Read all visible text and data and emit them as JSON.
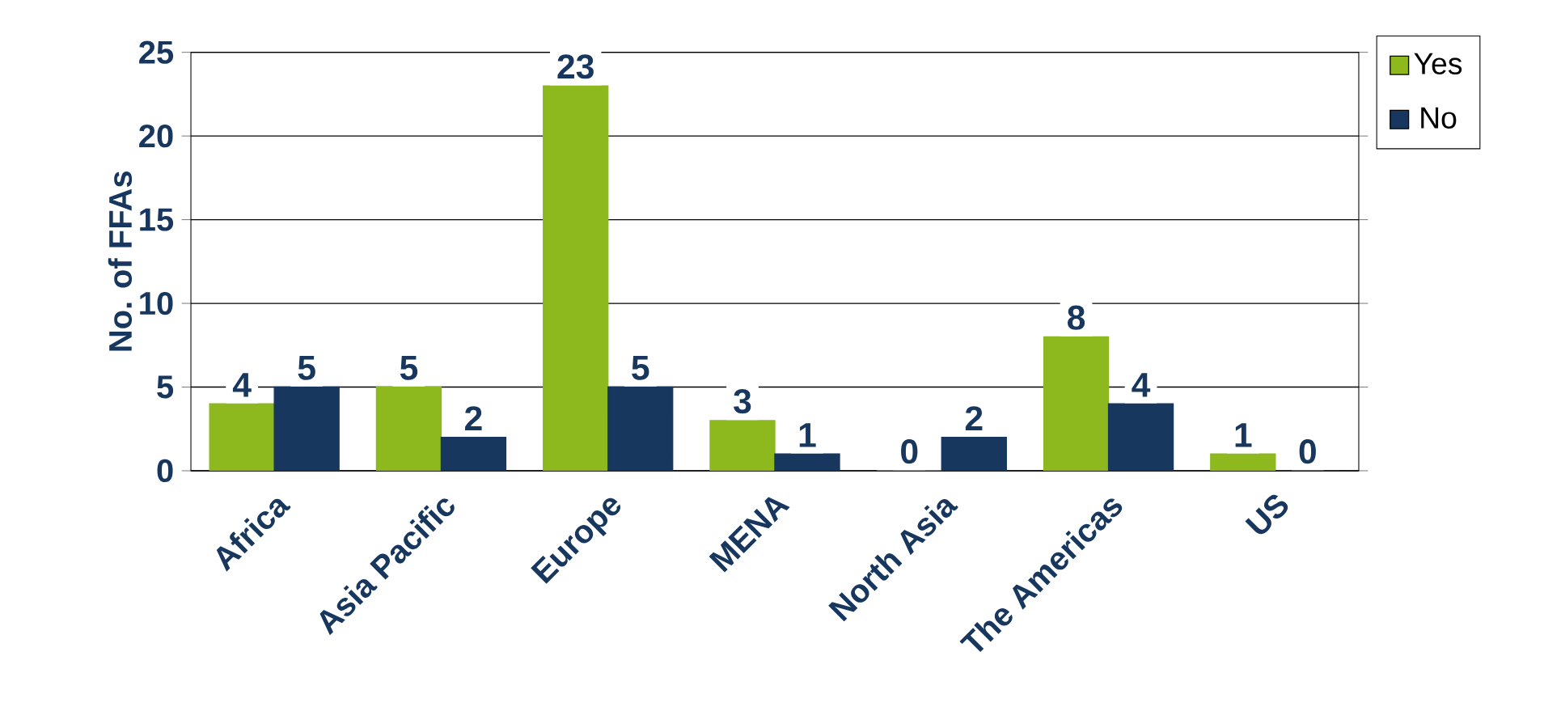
{
  "chart_data": {
    "type": "bar",
    "ylabel": "No. of FFAs",
    "categories": [
      "Africa",
      "Asia Pacific",
      "Europe",
      "MENA",
      "North Asia",
      "The Americas",
      "US"
    ],
    "series": [
      {
        "name": "Yes",
        "color": "#8db81e",
        "values": [
          4,
          5,
          23,
          3,
          0,
          8,
          1
        ]
      },
      {
        "name": "No",
        "color": "#17375e",
        "values": [
          5,
          2,
          5,
          1,
          2,
          4,
          0
        ]
      }
    ],
    "ylim": [
      0,
      25
    ],
    "yticks": [
      0,
      5,
      10,
      15,
      20,
      25
    ],
    "grid": "y",
    "legend": "top right",
    "data_labels": true
  }
}
